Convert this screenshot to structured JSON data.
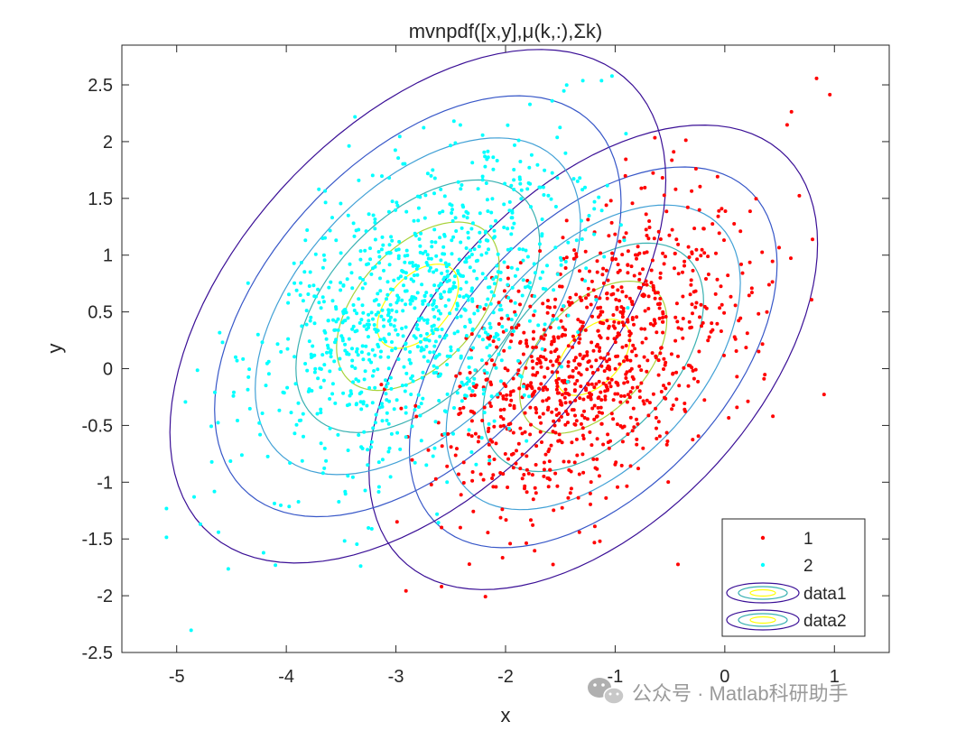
{
  "chart_data": {
    "type": "scatter",
    "title": "mvnpdf([x,y],μ(k,:),Σk)",
    "xlabel": "x",
    "ylabel": "y",
    "xlim": [
      -5.5,
      1.5
    ],
    "ylim": [
      -2.5,
      2.85
    ],
    "xticks": [
      -5,
      -4,
      -3,
      -2,
      -1,
      0,
      1
    ],
    "yticks": [
      -2.5,
      -2,
      -1.5,
      -1,
      -0.5,
      0,
      0.5,
      1,
      1.5,
      2,
      2.5
    ],
    "xtick_labels": [
      "-5",
      "-4",
      "-3",
      "-2",
      "-1",
      "0",
      "1"
    ],
    "ytick_labels": [
      "-2.5",
      "-2",
      "-1.5",
      "-1",
      "-0.5",
      "0",
      "0.5",
      "1",
      "1.5",
      "2",
      "2.5"
    ],
    "grid": false,
    "legend_position": "bottom-right",
    "series": [
      {
        "name": "1",
        "kind": "points",
        "color": "#ff0000",
        "mean": [
          -1.2,
          0.1
        ],
        "cov": [
          [
            0.45,
            0.22
          ],
          [
            0.22,
            0.45
          ]
        ],
        "count": 1000,
        "seed": 7
      },
      {
        "name": "2",
        "kind": "points",
        "color": "#00ffff",
        "mean": [
          -2.8,
          0.55
        ],
        "cov": [
          [
            0.55,
            0.27
          ],
          [
            0.27,
            0.55
          ]
        ],
        "count": 1000,
        "seed": 13
      },
      {
        "name": "data1",
        "kind": "contour",
        "center": [
          -1.2,
          0.1
        ],
        "cov": [
          [
            0.45,
            0.22
          ],
          [
            0.22,
            0.45
          ]
        ],
        "levels": [
          0.5,
          1,
          1.5,
          2,
          2.5,
          3.05
        ],
        "colors": [
          "#ffff00",
          "#a8d23a",
          "#39b1b1",
          "#42a1d6",
          "#3757c8",
          "#3a0f96"
        ]
      },
      {
        "name": "data2",
        "kind": "contour",
        "center": [
          -2.8,
          0.55
        ],
        "cov": [
          [
            0.55,
            0.27
          ],
          [
            0.27,
            0.55
          ]
        ],
        "levels": [
          0.5,
          1,
          1.5,
          2,
          2.5,
          3.05
        ],
        "colors": [
          "#ffff00",
          "#a8d23a",
          "#39b1b1",
          "#42a1d6",
          "#3757c8",
          "#3a0f96"
        ]
      }
    ]
  },
  "legend": {
    "items": [
      "1",
      "2",
      "data1",
      "data2"
    ]
  },
  "watermark": {
    "text": "公众号 · Matlab科研助手",
    "icon": "wechat-icon"
  }
}
